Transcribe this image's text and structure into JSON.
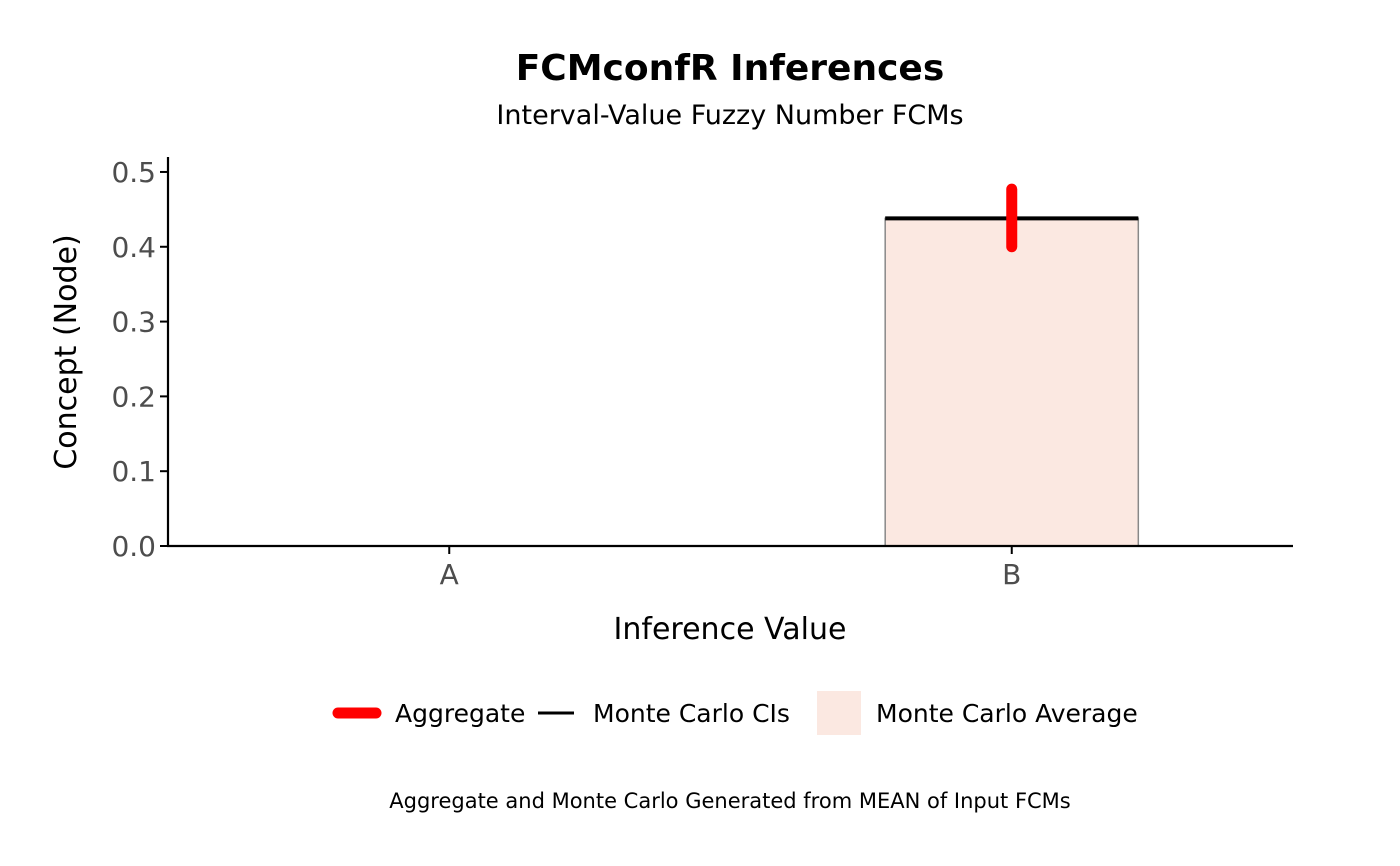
{
  "chart_data": {
    "type": "bar",
    "title": "FCMconfR Inferences",
    "subtitle": "Interval-Value Fuzzy Number FCMs",
    "xlabel": "Inference Value",
    "ylabel": "Concept (Node)",
    "caption": "Aggregate and Monte Carlo Generated from MEAN of Input FCMs",
    "categories": [
      "A",
      "B"
    ],
    "ylim": [
      0,
      0.52
    ],
    "yticks": [
      "0.0",
      "0.1",
      "0.2",
      "0.3",
      "0.4",
      "0.5"
    ],
    "grid": false,
    "legend_position": "bottom",
    "series": [
      {
        "name": "Monte Carlo Average",
        "kind": "bar",
        "values": [
          0,
          0.438
        ],
        "color": "#fbe8e1",
        "stroke": "#888888"
      },
      {
        "name": "Monte Carlo CIs",
        "kind": "interval-line",
        "lower": [
          null,
          0.436
        ],
        "upper": [
          null,
          0.44
        ],
        "color": "#000000"
      },
      {
        "name": "Aggregate",
        "kind": "interval",
        "lower": [
          null,
          0.4
        ],
        "upper": [
          null,
          0.477
        ],
        "color": "#ff0000"
      }
    ],
    "legend": [
      {
        "label": "Aggregate",
        "symbol": "thick-line",
        "color": "#ff0000"
      },
      {
        "label": "Monte Carlo CIs",
        "symbol": "line",
        "color": "#000000"
      },
      {
        "label": "Monte Carlo Average",
        "symbol": "fill",
        "color": "#fbe8e1"
      }
    ]
  }
}
